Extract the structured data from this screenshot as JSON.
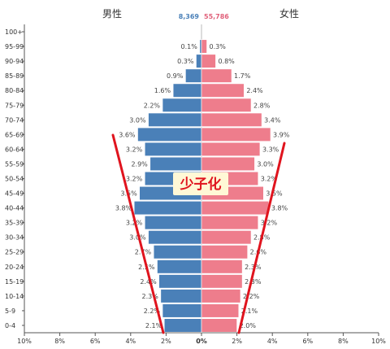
{
  "chart_data": {
    "type": "bar",
    "subtype": "population-pyramid",
    "categories": [
      "100+",
      "95-99",
      "90-94",
      "85-89",
      "80-84",
      "75-79",
      "70-74",
      "65-69",
      "60-64",
      "55-59",
      "50-54",
      "45-49",
      "40-44",
      "35-39",
      "30-34",
      "25-29",
      "20-24",
      "15-19",
      "10-14",
      "5-9",
      "0-4"
    ],
    "series": [
      {
        "name": "男性",
        "total": "8,369",
        "color": "#4a80b8",
        "values": [
          0.0,
          0.1,
          0.3,
          0.9,
          1.6,
          2.2,
          3.0,
          3.6,
          3.2,
          2.9,
          3.2,
          3.5,
          3.8,
          3.2,
          3.0,
          2.7,
          2.5,
          2.4,
          2.3,
          2.2,
          2.1
        ],
        "labels": [
          "",
          "0.1%",
          "0.3%",
          "0.9%",
          "1.6%",
          "2.2%",
          "3.0%",
          "3.6%",
          "3.2%",
          "2.9%",
          "3.2%",
          "3.5%",
          "3.8%",
          "3.2%",
          "3.0%",
          "2.7%",
          "2.5%",
          "2.4%",
          "2.3%",
          "2.2%",
          "2.1%"
        ]
      },
      {
        "name": "女性",
        "total": "55,786",
        "color": "#ee7d8c",
        "values": [
          0.0,
          0.3,
          0.8,
          1.7,
          2.4,
          2.8,
          3.4,
          3.9,
          3.3,
          3.0,
          3.2,
          3.5,
          3.8,
          3.2,
          2.8,
          2.6,
          2.3,
          2.3,
          2.2,
          2.1,
          2.0
        ],
        "labels": [
          "",
          "0.3%",
          "0.8%",
          "1.7%",
          "2.4%",
          "2.8%",
          "3.4%",
          "3.9%",
          "3.3%",
          "3.0%",
          "3.2%",
          "3.5%",
          "3.8%",
          "3.2%",
          "2.8%",
          "2.6%",
          "2.3%",
          "2.3%",
          "2.2%",
          "2.1%",
          "2.0%"
        ]
      }
    ],
    "xlim": [
      -10,
      10
    ],
    "xticks": [
      "10%",
      "8%",
      "6%",
      "4%",
      "2%",
      "0%",
      "2%",
      "4%",
      "6%",
      "8%",
      "10%"
    ],
    "annotation": {
      "text": "少子化",
      "line_color": "#e0141e",
      "bg_color": "#fff8d6"
    }
  }
}
